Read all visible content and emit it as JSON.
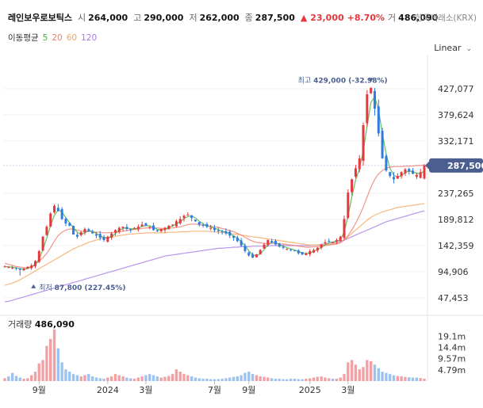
{
  "header": {
    "name": "레인보우로보틱스",
    "open_label": "시",
    "open": "264,000",
    "high_label": "고",
    "high": "290,000",
    "low_label": "저",
    "low": "262,000",
    "close_label": "종",
    "close": "287,500",
    "change": "▲ 23,000",
    "change_pct": "+8.70%",
    "volume_label": "거",
    "volume": "486,090",
    "exchange": "한국거래소(KRX)"
  },
  "ma": {
    "label": "이동평균",
    "periods": [
      "5",
      "20",
      "60",
      "120"
    ],
    "colors": [
      "#3fae3a",
      "#f07b6b",
      "#f5a65b",
      "#a77be8"
    ]
  },
  "scale": {
    "label": "Linear"
  },
  "colors": {
    "up": "#e8363d",
    "down": "#2f7be0",
    "badge": "#4a5f8f"
  },
  "chart_data": {
    "type": "candlestick",
    "price_axis": {
      "ticks": [
        "427,077",
        "379,624",
        "332,171",
        "237,265",
        "189,812",
        "142,359",
        "94,906",
        "47,453"
      ],
      "ylim": [
        20000,
        480000
      ]
    },
    "current_price": {
      "value": 287500,
      "label": "287,500"
    },
    "annotations": {
      "high": {
        "label": "최고",
        "text": "429,000 (-32.98%)",
        "value": 429000
      },
      "low": {
        "label": "최저",
        "text": "87,800 (227.45%)",
        "value": 87800
      }
    },
    "x_ticks": [
      "9월",
      "2024",
      "3월",
      "7월",
      "9월",
      "2025",
      "3월"
    ],
    "volume": {
      "label": "거래량",
      "value": "486,090",
      "ticks": [
        "19.1m",
        "14.4m",
        "9.57m",
        "4.79m"
      ],
      "ylim": [
        0,
        24000000
      ]
    },
    "anchors": {
      "close": [
        104,
        103,
        102,
        100,
        98,
        100,
        103,
        106,
        114,
        132,
        158,
        176,
        200,
        214,
        205,
        190,
        182,
        178,
        162,
        158,
        166,
        172,
        168,
        164,
        160,
        156,
        152,
        158,
        164,
        170,
        174,
        176,
        172,
        170,
        174,
        176,
        180,
        178,
        176,
        170,
        168,
        172,
        174,
        178,
        180,
        186,
        190,
        196,
        198,
        192,
        186,
        180,
        178,
        176,
        174,
        170,
        168,
        166,
        164,
        160,
        156,
        150,
        142,
        132,
        124,
        120,
        126,
        134,
        144,
        152,
        148,
        144,
        140,
        138,
        136,
        134,
        132,
        128,
        126,
        128,
        132,
        134,
        138,
        144,
        148,
        150,
        148,
        152,
        158,
        190,
        238,
        262,
        282,
        300,
        360,
        416,
        428,
        390,
        345,
        300,
        278,
        268,
        262,
        268,
        275,
        280,
        276,
        272,
        270,
        275,
        287
      ],
      "ma20": [
        110,
        108,
        106,
        104,
        103,
        102,
        102,
        104,
        108,
        114,
        120,
        128,
        138,
        150,
        160,
        166,
        170,
        172,
        172,
        170,
        168,
        168,
        168,
        167,
        166,
        166,
        165,
        165,
        166,
        166,
        167,
        168,
        169,
        170,
        171,
        172,
        173,
        174,
        174,
        174,
        174,
        173,
        173,
        173,
        174,
        175,
        176,
        178,
        180,
        181,
        181,
        180,
        179,
        178,
        177,
        176,
        175,
        173,
        171,
        169,
        167,
        164,
        161,
        157,
        153,
        150,
        148,
        147,
        146,
        146,
        146,
        146,
        145,
        145,
        144,
        143,
        142,
        141,
        140,
        139,
        139,
        140,
        140,
        141,
        142,
        143,
        144,
        145,
        147,
        152,
        160,
        170,
        182,
        196,
        212,
        230,
        248,
        262,
        272,
        278,
        282,
        284,
        285,
        285,
        285,
        286,
        286,
        286,
        287,
        287,
        288
      ],
      "ma60": [
        70,
        72,
        74,
        77,
        80,
        84,
        88,
        92,
        96,
        100,
        104,
        108,
        112,
        116,
        120,
        124,
        128,
        132,
        136,
        139,
        142,
        145,
        148,
        150,
        152,
        154,
        156,
        157,
        158,
        159,
        160,
        161,
        162,
        163,
        163,
        164,
        164,
        165,
        165,
        165,
        165,
        165,
        165,
        166,
        166,
        166,
        167,
        167,
        167,
        168,
        168,
        168,
        168,
        168,
        167,
        167,
        166,
        166,
        165,
        164,
        163,
        162,
        161,
        160,
        159,
        158,
        157,
        156,
        155,
        154,
        153,
        152,
        151,
        150,
        149,
        148,
        147,
        146,
        145,
        144,
        143,
        143,
        143,
        143,
        144,
        144,
        145,
        146,
        148,
        152,
        158,
        164,
        170,
        176,
        182,
        188,
        193,
        197,
        200,
        203,
        205,
        207,
        209,
        211,
        212,
        213,
        214,
        215,
        216,
        217,
        218
      ],
      "ma120": [
        40,
        41,
        43,
        45,
        47,
        49,
        51,
        53,
        55,
        57,
        59,
        61,
        63,
        65,
        67,
        69,
        71,
        73,
        75,
        77,
        79,
        81,
        83,
        85,
        87,
        89,
        91,
        93,
        95,
        97,
        99,
        101,
        103,
        105,
        107,
        109,
        111,
        113,
        115,
        117,
        119,
        121,
        123,
        124,
        125,
        126,
        127,
        128,
        129,
        130,
        131,
        132,
        133,
        134,
        135,
        136,
        137,
        137,
        138,
        138,
        139,
        139,
        140,
        140,
        140,
        141,
        141,
        141,
        141,
        142,
        142,
        142,
        142,
        142,
        142,
        142,
        142,
        142,
        142,
        142,
        142,
        143,
        143,
        144,
        145,
        146,
        147,
        148,
        150,
        152,
        155,
        158,
        161,
        164,
        167,
        170,
        173,
        176,
        179,
        182,
        185,
        187,
        189,
        191,
        193,
        195,
        197,
        199,
        201,
        203,
        205
      ],
      "volume_m": [
        1.2,
        2.0,
        3.5,
        2.2,
        1.5,
        1.0,
        1.2,
        2.5,
        4.0,
        7.5,
        9.0,
        15.0,
        18.0,
        22.0,
        14.0,
        8.0,
        5.0,
        4.0,
        3.0,
        2.5,
        2.0,
        2.5,
        3.0,
        2.0,
        1.5,
        1.2,
        1.0,
        1.5,
        2.0,
        3.0,
        2.5,
        2.0,
        1.5,
        1.2,
        1.0,
        1.5,
        2.0,
        2.5,
        3.0,
        2.5,
        2.0,
        1.5,
        1.8,
        2.2,
        3.0,
        5.0,
        4.0,
        3.0,
        2.5,
        2.0,
        1.5,
        1.2,
        1.0,
        1.0,
        0.8,
        0.8,
        0.8,
        1.0,
        1.2,
        1.5,
        1.8,
        2.0,
        2.5,
        3.5,
        4.0,
        3.0,
        2.5,
        2.0,
        1.8,
        1.5,
        1.2,
        1.0,
        1.0,
        0.8,
        0.8,
        1.0,
        1.0,
        0.8,
        0.8,
        1.0,
        1.2,
        1.5,
        1.8,
        2.0,
        1.5,
        1.2,
        1.0,
        1.0,
        1.5,
        3.0,
        8.0,
        9.0,
        7.0,
        5.0,
        6.0,
        9.0,
        8.5,
        7.0,
        5.5,
        4.0,
        3.5,
        3.0,
        2.5,
        2.2,
        2.0,
        1.8,
        1.6,
        1.5,
        1.5,
        1.3,
        1.0
      ]
    }
  }
}
